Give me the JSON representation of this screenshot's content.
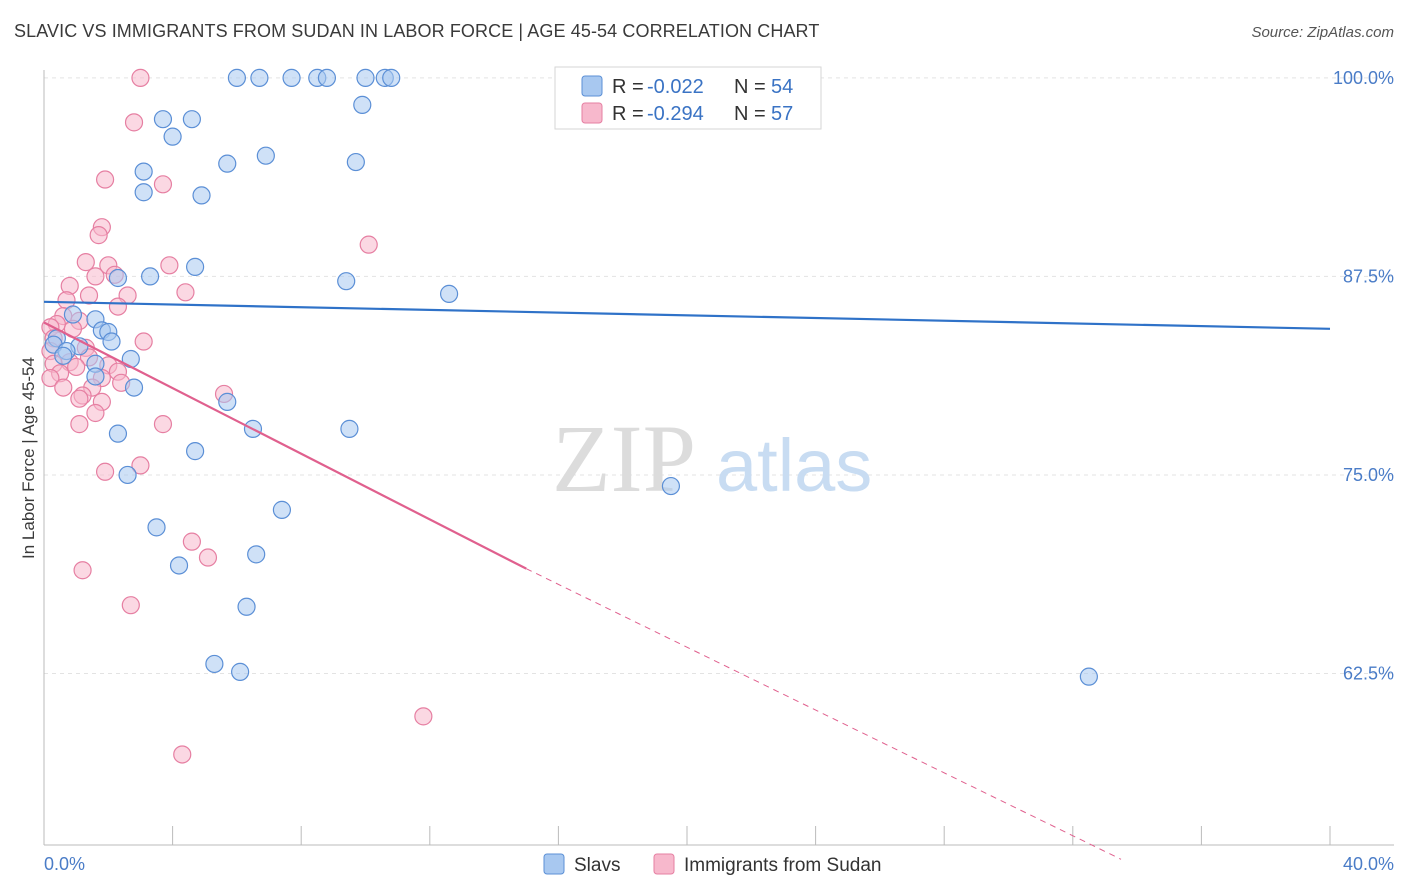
{
  "header": {
    "title": "SLAVIC VS IMMIGRANTS FROM SUDAN IN LABOR FORCE | AGE 45-54 CORRELATION CHART",
    "source": "Source: ZipAtlas.com"
  },
  "watermark": {
    "zip": "ZIP",
    "atlas": "atlas"
  },
  "colors": {
    "slavs_fill": "#a8c8f0",
    "slavs_stroke": "#5b8fd6",
    "slavs_line": "#2f72c8",
    "sudan_fill": "#f7b8cc",
    "sudan_stroke": "#e67fa2",
    "sudan_line": "#e0608e",
    "grid": "#e3e3e3",
    "tick_label": "#4a7cc7"
  },
  "legend": {
    "rows": [
      {
        "r_label": "R = ",
        "r_value": "-0.022",
        "n_label": "N = ",
        "n_value": "54"
      },
      {
        "r_label": "R = ",
        "r_value": "-0.294",
        "n_label": "N = ",
        "n_value": "57"
      }
    ]
  },
  "bottom_legend": {
    "series1": "Slavs",
    "series2": "Immigrants from Sudan"
  },
  "chart_data": {
    "type": "scatter",
    "ylabel": "In Labor Force | Age 45-54",
    "xlim": [
      0,
      40
    ],
    "ylim": [
      51.7,
      101
    ],
    "x_tick_labels": [
      "0.0%",
      "40.0%"
    ],
    "y_ticks": [
      100,
      87.5,
      75,
      62.5
    ],
    "y_tick_labels": [
      "100.0%",
      "87.5%",
      "75.0%",
      "62.5%"
    ],
    "grid": true,
    "legend_position": "top-center",
    "series": [
      {
        "name": "Slavs",
        "trend": {
          "x": [
            0,
            40
          ],
          "y": [
            85.9,
            84.2
          ]
        },
        "points": [
          [
            6.0,
            100
          ],
          [
            6.7,
            100
          ],
          [
            7.7,
            100
          ],
          [
            8.5,
            100
          ],
          [
            8.8,
            100
          ],
          [
            10.0,
            100
          ],
          [
            10.6,
            100
          ],
          [
            10.8,
            100
          ],
          [
            9.9,
            98.3
          ],
          [
            3.7,
            97.4
          ],
          [
            4.6,
            97.4
          ],
          [
            4.0,
            96.3
          ],
          [
            6.9,
            95.1
          ],
          [
            5.7,
            94.6
          ],
          [
            9.7,
            94.7
          ],
          [
            3.1,
            94.1
          ],
          [
            3.1,
            92.8
          ],
          [
            4.9,
            92.6
          ],
          [
            4.7,
            88.1
          ],
          [
            3.3,
            87.5
          ],
          [
            2.3,
            87.4
          ],
          [
            9.4,
            87.2
          ],
          [
            12.6,
            86.4
          ],
          [
            0.9,
            85.1
          ],
          [
            1.6,
            84.8
          ],
          [
            1.8,
            84.1
          ],
          [
            0.4,
            83.6
          ],
          [
            2.0,
            84.0
          ],
          [
            0.3,
            83.2
          ],
          [
            1.1,
            83.1
          ],
          [
            2.1,
            83.4
          ],
          [
            0.7,
            82.8
          ],
          [
            0.6,
            82.5
          ],
          [
            2.7,
            82.3
          ],
          [
            1.6,
            82.0
          ],
          [
            1.6,
            81.2
          ],
          [
            2.8,
            80.5
          ],
          [
            5.7,
            79.6
          ],
          [
            2.3,
            77.6
          ],
          [
            6.5,
            77.9
          ],
          [
            9.5,
            77.9
          ],
          [
            4.7,
            76.5
          ],
          [
            2.6,
            75.0
          ],
          [
            19.5,
            74.3
          ],
          [
            7.4,
            72.8
          ],
          [
            3.5,
            71.7
          ],
          [
            6.6,
            70.0
          ],
          [
            4.2,
            69.3
          ],
          [
            6.3,
            66.7
          ],
          [
            5.3,
            63.1
          ],
          [
            6.1,
            62.6
          ],
          [
            32.5,
            62.3
          ]
        ]
      },
      {
        "name": "Immigrants from Sudan",
        "trend": {
          "x": [
            0,
            15
          ],
          "y": [
            84.6,
            69.1
          ]
        },
        "trend_dashed": {
          "x": [
            15,
            33.5
          ],
          "y": [
            69.1,
            50.8
          ]
        },
        "points": [
          [
            3.0,
            100
          ],
          [
            2.8,
            97.2
          ],
          [
            1.9,
            93.6
          ],
          [
            3.7,
            93.3
          ],
          [
            1.8,
            90.6
          ],
          [
            1.7,
            90.1
          ],
          [
            10.1,
            89.5
          ],
          [
            1.3,
            88.4
          ],
          [
            2.0,
            88.2
          ],
          [
            3.9,
            88.2
          ],
          [
            1.6,
            87.5
          ],
          [
            2.2,
            87.6
          ],
          [
            0.8,
            86.9
          ],
          [
            4.4,
            86.5
          ],
          [
            1.4,
            86.3
          ],
          [
            2.6,
            86.3
          ],
          [
            0.7,
            86.0
          ],
          [
            2.3,
            85.6
          ],
          [
            0.6,
            85.0
          ],
          [
            1.1,
            84.7
          ],
          [
            0.4,
            84.5
          ],
          [
            0.2,
            84.3
          ],
          [
            0.9,
            84.2
          ],
          [
            0.3,
            83.6
          ],
          [
            3.1,
            83.4
          ],
          [
            1.3,
            83.0
          ],
          [
            0.2,
            82.8
          ],
          [
            1.4,
            82.4
          ],
          [
            0.8,
            82.1
          ],
          [
            0.3,
            82.0
          ],
          [
            1.0,
            81.8
          ],
          [
            2.0,
            81.9
          ],
          [
            0.5,
            81.4
          ],
          [
            2.3,
            81.5
          ],
          [
            0.2,
            81.1
          ],
          [
            1.8,
            81.1
          ],
          [
            2.4,
            80.8
          ],
          [
            0.6,
            80.5
          ],
          [
            1.5,
            80.5
          ],
          [
            1.2,
            80.0
          ],
          [
            5.6,
            80.1
          ],
          [
            1.1,
            79.8
          ],
          [
            1.8,
            79.6
          ],
          [
            1.6,
            78.9
          ],
          [
            1.1,
            78.2
          ],
          [
            3.7,
            78.2
          ],
          [
            3.0,
            75.6
          ],
          [
            1.9,
            75.2
          ],
          [
            4.6,
            70.8
          ],
          [
            5.1,
            69.8
          ],
          [
            1.2,
            69.0
          ],
          [
            2.7,
            66.8
          ],
          [
            11.8,
            59.8
          ],
          [
            4.3,
            57.4
          ]
        ]
      }
    ]
  }
}
